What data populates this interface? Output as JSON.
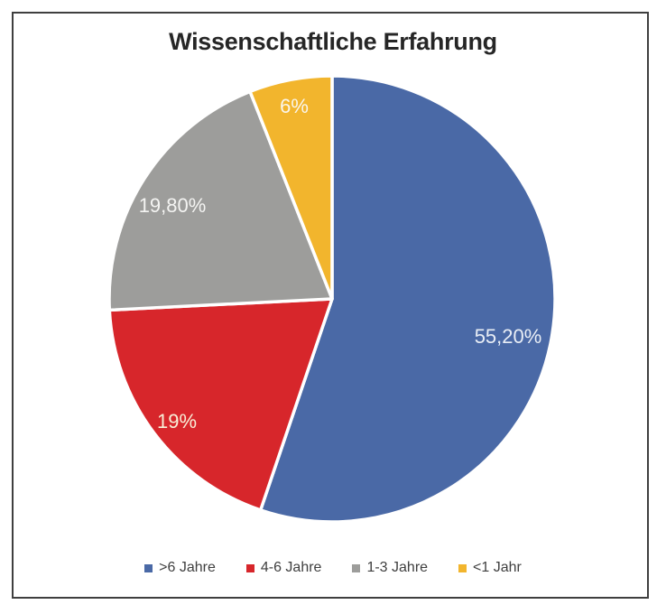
{
  "chart_data": {
    "type": "pie",
    "title": "Wissenschaftliche Erfahrung",
    "legend_position": "bottom",
    "start_angle_deg": 0,
    "direction": "clockwise",
    "slices": [
      {
        "label": ">6 Jahre",
        "value": 55.2,
        "display": "55,20%",
        "color": "#4A69A6",
        "label_color": "#E9EEF6"
      },
      {
        "label": "4-6 Jahre",
        "value": 19.0,
        "display": "19%",
        "color": "#D7262B",
        "label_color": "#F8EFD8"
      },
      {
        "label": "1-3 Jahre",
        "value": 19.8,
        "display": "19,80%",
        "color": "#9D9D9B",
        "label_color": "#F4F4F2"
      },
      {
        "label": "<1 Jahr",
        "value": 6.0,
        "display": "6%",
        "color": "#F2B52D",
        "label_color": "#FAF6EC"
      }
    ]
  },
  "figure": {
    "title_color": "#262626",
    "frame_border_color": "#3f3f3f",
    "slice_separator_color": "#ffffff",
    "legend_text_color": "#3f3f3f",
    "background": "#ffffff"
  }
}
